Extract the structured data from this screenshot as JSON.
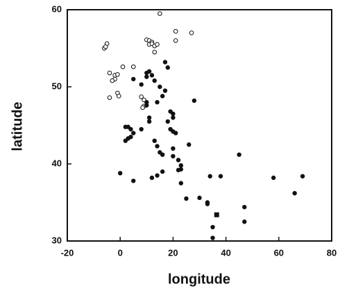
{
  "chart_data": {
    "type": "scatter",
    "x_label": "longitude",
    "y_label": "latitude",
    "xlim": [
      -20,
      80
    ],
    "ylim": [
      30,
      60
    ],
    "xticks": [
      -20,
      0,
      20,
      40,
      60,
      80
    ],
    "yticks": [
      30,
      40,
      50,
      60
    ],
    "series": [
      {
        "marker": "open-circle",
        "color": "#111111",
        "x": [
          -5,
          -6,
          -5.5,
          15,
          10,
          11,
          12,
          11,
          12,
          13,
          14,
          13,
          21,
          27,
          21,
          -4,
          -2,
          -2,
          -3,
          -1,
          1,
          5,
          -4,
          -1,
          -0.5,
          8,
          9,
          9,
          8.5
        ],
        "values": [
          55.6,
          55,
          55.2,
          59.5,
          56.1,
          56,
          55.8,
          55.5,
          55.6,
          55.3,
          55.5,
          54.5,
          57.2,
          57,
          56,
          51.8,
          51.5,
          51,
          50.8,
          51.6,
          52.6,
          52.6,
          48.6,
          49.2,
          48.8,
          48.7,
          48.3,
          47.5,
          47.3
        ]
      },
      {
        "marker": "filled-circle",
        "color": "#111111",
        "x": [
          11,
          10,
          10,
          12,
          5,
          8,
          13,
          15,
          17,
          17,
          18,
          16,
          14,
          10,
          10,
          11,
          20,
          20,
          19,
          18,
          28,
          2,
          3,
          4,
          5,
          4,
          3,
          2,
          8,
          11,
          19,
          20,
          21,
          13,
          14,
          15,
          16,
          20,
          20,
          22,
          23,
          23,
          26,
          16,
          14,
          12,
          5,
          0,
          23,
          25,
          30,
          33,
          33,
          34,
          38,
          45,
          47,
          47,
          35,
          35,
          58,
          66,
          69,
          22
        ],
        "values": [
          52,
          51.8,
          51.3,
          51.5,
          51,
          50.3,
          50.8,
          50,
          49.5,
          53.2,
          52.5,
          48.8,
          48,
          48,
          47.6,
          46,
          46.5,
          46,
          46.8,
          45.5,
          48.2,
          44.8,
          44.8,
          44.5,
          44,
          43.5,
          43.3,
          43,
          44.5,
          45.5,
          44.5,
          44.2,
          44,
          43,
          42.3,
          41.5,
          41.2,
          42,
          41,
          40.5,
          39.8,
          39.3,
          42.5,
          39,
          38.5,
          38.2,
          37.8,
          38.8,
          37.5,
          35.5,
          35.6,
          35,
          34.8,
          38.4,
          38.4,
          41.2,
          34.4,
          32.5,
          31.8,
          30.4,
          38.2,
          36.2,
          38.4,
          39.2
        ]
      },
      {
        "marker": "square",
        "color": "#111111",
        "x": [
          36.5
        ],
        "values": [
          33.4
        ]
      }
    ]
  }
}
